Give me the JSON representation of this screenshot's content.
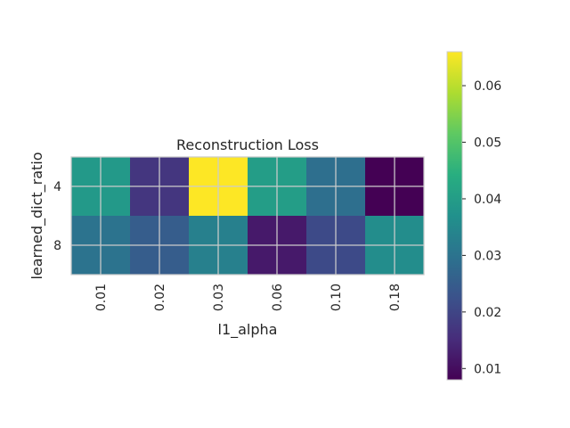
{
  "chart_data": {
    "type": "heatmap",
    "title": "Reconstruction Loss",
    "xlabel": "l1_alpha",
    "ylabel": "learned_dict_ratio",
    "x_categories": [
      "0.01",
      "0.02",
      "0.03",
      "0.06",
      "0.10",
      "0.18"
    ],
    "y_categories": [
      "4",
      "8"
    ],
    "values": [
      [
        0.039,
        0.017,
        0.066,
        0.04,
        0.029,
        0.008
      ],
      [
        0.03,
        0.025,
        0.033,
        0.012,
        0.021,
        0.036
      ]
    ],
    "colorbar": {
      "min": 0.008,
      "max": 0.066,
      "ticks": [
        0.01,
        0.02,
        0.03,
        0.04,
        0.05,
        0.06
      ],
      "tick_labels": [
        "0.01",
        "0.02",
        "0.03",
        "0.04",
        "0.05",
        "0.06"
      ],
      "colormap": "viridis"
    },
    "grid": true,
    "grid_color": "#cccccc"
  }
}
